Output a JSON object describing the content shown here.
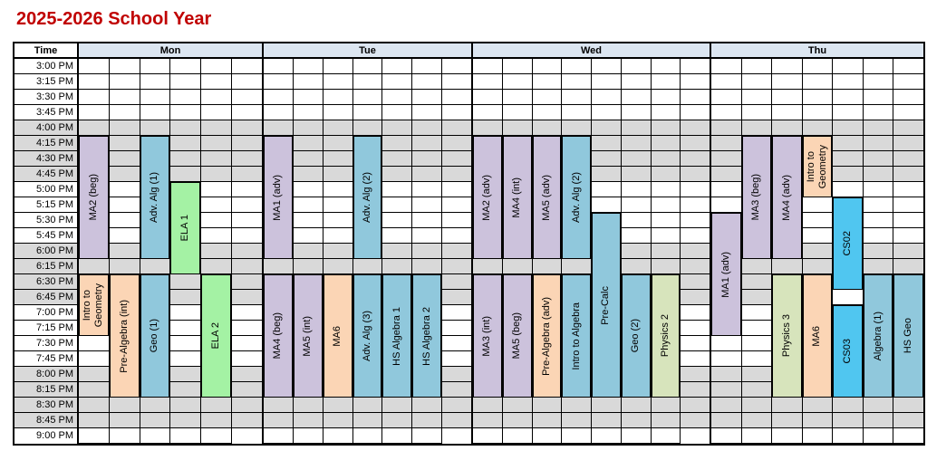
{
  "title": "2025-2026 School Year",
  "table": {
    "time_header": "Time",
    "times": [
      "3:00 PM",
      "3:15 PM",
      "3:30 PM",
      "3:45 PM",
      "4:00 PM",
      "4:15 PM",
      "4:30 PM",
      "4:45 PM",
      "5:00 PM",
      "5:15 PM",
      "5:30 PM",
      "5:45 PM",
      "6:00 PM",
      "6:15 PM",
      "6:30 PM",
      "6:45 PM",
      "7:00 PM",
      "7:15 PM",
      "7:30 PM",
      "7:45 PM",
      "8:00 PM",
      "8:15 PM",
      "8:30 PM",
      "8:45 PM",
      "9:00 PM"
    ],
    "gray_row_indices": [
      4,
      5,
      6,
      7,
      12,
      13,
      14,
      15,
      20,
      21,
      22,
      23
    ],
    "colors": {
      "purple": "#CCC2DC",
      "blue": "#90C8DC",
      "cyan": "#50C6F0",
      "orange": "#FBD5B5",
      "green": "#A4F2A4",
      "olive": "#D7E4BC",
      "gray": "#D9D9D9",
      "header_bg": "#DCE6F1",
      "title_red": "#C00000"
    },
    "days": [
      {
        "label": "Mon",
        "columns": [
          {
            "blocks": [
              {
                "label": "MA2 (beg)",
                "color": "purple",
                "start": 5,
                "span": 8
              },
              {
                "label": "Intro to\nGeometry",
                "color": "orange",
                "start": 14,
                "span": 4
              }
            ]
          },
          {
            "blocks": [
              {
                "label": "Pre-Algebra (int)",
                "color": "orange",
                "start": 14,
                "span": 8
              }
            ]
          },
          {
            "blocks": [
              {
                "label": "Adv. Alg (1)",
                "color": "blue",
                "start": 5,
                "span": 8
              },
              {
                "label": "Geo (1)",
                "color": "blue",
                "start": 14,
                "span": 8
              }
            ]
          },
          {
            "blocks": [
              {
                "label": "ELA 1",
                "color": "green",
                "start": 8,
                "span": 6
              }
            ]
          },
          {
            "blocks": [
              {
                "label": "ELA 2",
                "color": "green",
                "start": 14,
                "span": 8
              }
            ]
          },
          {
            "blocks": []
          }
        ]
      },
      {
        "label": "Tue",
        "columns": [
          {
            "blocks": [
              {
                "label": "MA1 (adv)",
                "color": "purple",
                "start": 5,
                "span": 8
              },
              {
                "label": "MA4 (beg)",
                "color": "purple",
                "start": 14,
                "span": 8
              }
            ]
          },
          {
            "blocks": [
              {
                "label": "MA5 (int)",
                "color": "purple",
                "start": 14,
                "span": 8
              }
            ]
          },
          {
            "blocks": [
              {
                "label": "MA6",
                "color": "orange",
                "start": 14,
                "span": 8
              }
            ]
          },
          {
            "blocks": [
              {
                "label": "Adv. Alg (2)",
                "color": "blue",
                "start": 5,
                "span": 8
              },
              {
                "label": "Adv. Alg (3)",
                "color": "blue",
                "start": 14,
                "span": 8
              }
            ]
          },
          {
            "blocks": [
              {
                "label": "HS Algebra 1",
                "color": "blue",
                "start": 14,
                "span": 8
              }
            ]
          },
          {
            "blocks": [
              {
                "label": "HS Algebra 2",
                "color": "blue",
                "start": 14,
                "span": 8
              }
            ]
          },
          {
            "blocks": []
          }
        ]
      },
      {
        "label": "Wed",
        "columns": [
          {
            "blocks": [
              {
                "label": "MA2 (adv)",
                "color": "purple",
                "start": 5,
                "span": 8
              },
              {
                "label": "MA3 (int)",
                "color": "purple",
                "start": 14,
                "span": 8
              }
            ]
          },
          {
            "blocks": [
              {
                "label": "MA4 (int)",
                "color": "purple",
                "start": 5,
                "span": 8
              },
              {
                "label": "MA5 (beg)",
                "color": "purple",
                "start": 14,
                "span": 8
              }
            ]
          },
          {
            "blocks": [
              {
                "label": "MA5 (adv)",
                "color": "purple",
                "start": 5,
                "span": 8
              },
              {
                "label": "Pre-Algebra (adv)",
                "color": "orange",
                "start": 14,
                "span": 8
              }
            ]
          },
          {
            "blocks": [
              {
                "label": "Adv. Alg (2)",
                "color": "blue",
                "start": 5,
                "span": 8
              },
              {
                "label": "Intro to Algebra",
                "color": "blue",
                "start": 14,
                "span": 8
              }
            ]
          },
          {
            "blocks": [
              {
                "label": "Pre-Calc",
                "color": "blue",
                "start": 10,
                "span": 12
              }
            ]
          },
          {
            "blocks": [
              {
                "label": "Geo (2)",
                "color": "blue",
                "start": 14,
                "span": 8
              }
            ]
          },
          {
            "blocks": [
              {
                "label": "Physics 2",
                "color": "olive",
                "start": 14,
                "span": 8
              }
            ]
          },
          {
            "blocks": []
          }
        ]
      },
      {
        "label": "Thu",
        "columns": [
          {
            "blocks": [
              {
                "label": "MA1 (adv)",
                "color": "purple",
                "start": 10,
                "span": 8
              }
            ]
          },
          {
            "blocks": [
              {
                "label": "MA3 (beg)",
                "color": "purple",
                "start": 5,
                "span": 8
              }
            ]
          },
          {
            "blocks": [
              {
                "label": "MA4 (adv)",
                "color": "purple",
                "start": 5,
                "span": 8
              },
              {
                "label": "Physics 3",
                "color": "olive",
                "start": 14,
                "span": 8
              }
            ]
          },
          {
            "blocks": [
              {
                "label": "Intro to\nGeometry",
                "color": "orange",
                "start": 5,
                "span": 4
              },
              {
                "label": "MA6",
                "color": "orange",
                "start": 14,
                "span": 8
              }
            ]
          },
          {
            "white_cells": [
              15
            ],
            "blocks": [
              {
                "label": "CS02",
                "color": "cyan",
                "start": 9,
                "span": 6
              },
              {
                "label": "CS03",
                "color": "cyan",
                "start": 16,
                "span": 6
              }
            ]
          },
          {
            "blocks": [
              {
                "label": "Algebra (1)",
                "color": "blue",
                "start": 14,
                "span": 8
              }
            ]
          },
          {
            "blocks": [
              {
                "label": "HS Geo",
                "color": "blue",
                "start": 14,
                "span": 8
              }
            ]
          }
        ]
      }
    ]
  }
}
